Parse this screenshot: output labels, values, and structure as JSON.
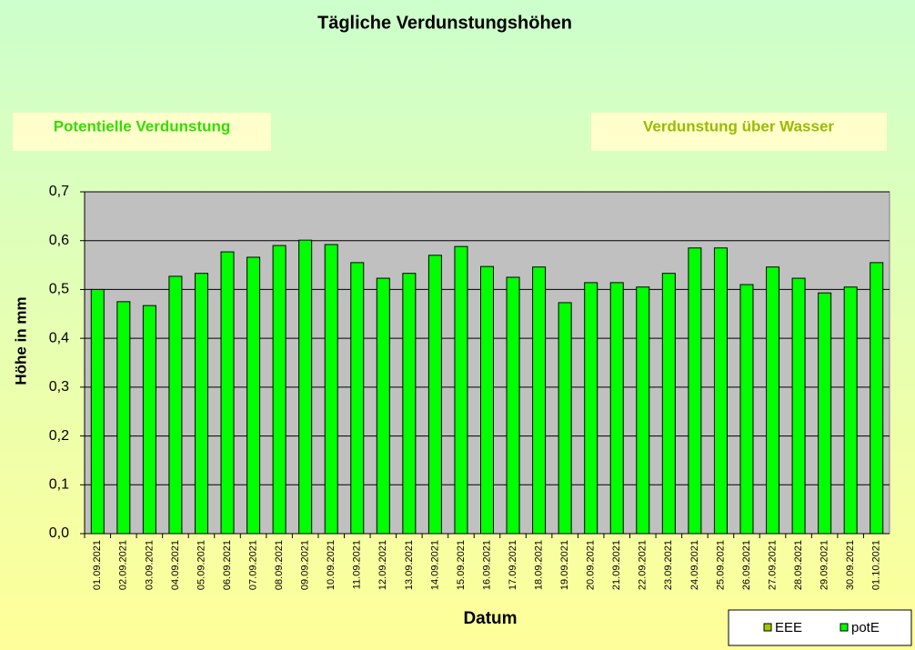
{
  "chart_data": {
    "type": "bar",
    "title": "Tägliche Verdunstungshöhen",
    "boxes": [
      "Potentielle Verdunstung",
      "Verdunstung über Wasser"
    ],
    "x_label": "Datum",
    "y_label": "Höhe in mm",
    "categories": [
      "01.09.2021",
      "02.09.2021",
      "03.09.2021",
      "04.09.2021",
      "05.09.2021",
      "06.09.2021",
      "07.09.2021",
      "08.09.2021",
      "09.09.2021",
      "10.09.2021",
      "11.09.2021",
      "12.09.2021",
      "13.09.2021",
      "14.09.2021",
      "15.09.2021",
      "16.09.2021",
      "17.09.2021",
      "18.09.2021",
      "19.09.2021",
      "20.09.2021",
      "21.09.2021",
      "22.09.2021",
      "23.09.2021",
      "24.09.2021",
      "25.09.2021",
      "26.09.2021",
      "27.09.2021",
      "28.09.2021",
      "29.09.2021",
      "30.09.2021",
      "01.10.2021"
    ],
    "series": [
      {
        "name": "potE",
        "color": "#00ff00",
        "values": [
          0.5,
          0.475,
          0.467,
          0.527,
          0.533,
          0.577,
          0.566,
          0.59,
          0.601,
          0.592,
          0.555,
          0.523,
          0.533,
          0.57,
          0.588,
          0.547,
          0.525,
          0.546,
          0.473,
          0.514,
          0.514,
          0.505,
          0.533,
          0.585,
          0.585,
          0.51,
          0.546,
          0.523,
          0.493,
          0.505,
          0.555
        ]
      }
    ],
    "legend": [
      {
        "name": "EEE",
        "color": "#99cc00"
      },
      {
        "name": "potE",
        "color": "#00ff00"
      }
    ],
    "ylim": [
      0,
      0.7
    ],
    "yticks": [
      {
        "value": 0,
        "label": "0,0"
      },
      {
        "value": 0.1,
        "label": "0,1"
      },
      {
        "value": 0.2,
        "label": "0,2"
      },
      {
        "value": 0.3,
        "label": "0,3"
      },
      {
        "value": 0.4,
        "label": "0,4"
      },
      {
        "value": 0.5,
        "label": "0,5"
      },
      {
        "value": 0.6,
        "label": "0,6"
      },
      {
        "value": 0.7,
        "label": "0,7"
      }
    ],
    "grid": true
  }
}
